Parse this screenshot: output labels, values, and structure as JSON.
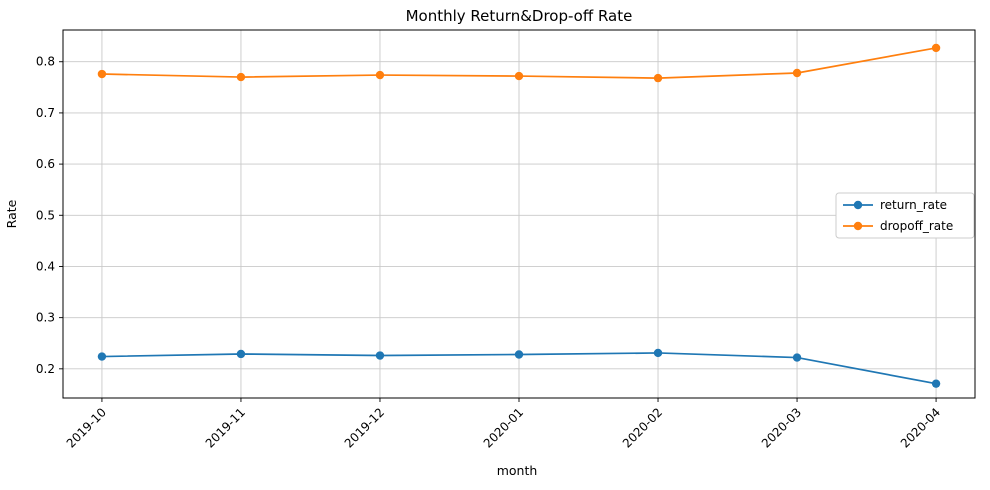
{
  "chart_data": {
    "type": "line",
    "title": "Monthly Return&Drop-off Rate",
    "xlabel": "month",
    "ylabel": "Rate",
    "categories": [
      "2019-10",
      "2019-11",
      "2019-12",
      "2020-01",
      "2020-02",
      "2020-03",
      "2020-04"
    ],
    "series": [
      {
        "name": "return_rate",
        "color": "#1f77b4",
        "values": [
          0.224,
          0.229,
          0.226,
          0.228,
          0.231,
          0.222,
          0.171
        ]
      },
      {
        "name": "dropoff_rate",
        "color": "#ff7f0e",
        "values": [
          0.776,
          0.77,
          0.774,
          0.772,
          0.768,
          0.778,
          0.827
        ]
      }
    ],
    "yticks": [
      0.2,
      0.3,
      0.4,
      0.5,
      0.6,
      0.7,
      0.8
    ],
    "ylim": [
      0.143,
      0.862
    ],
    "grid": true,
    "legend_position": "center right",
    "x_tick_rotation": 45
  }
}
